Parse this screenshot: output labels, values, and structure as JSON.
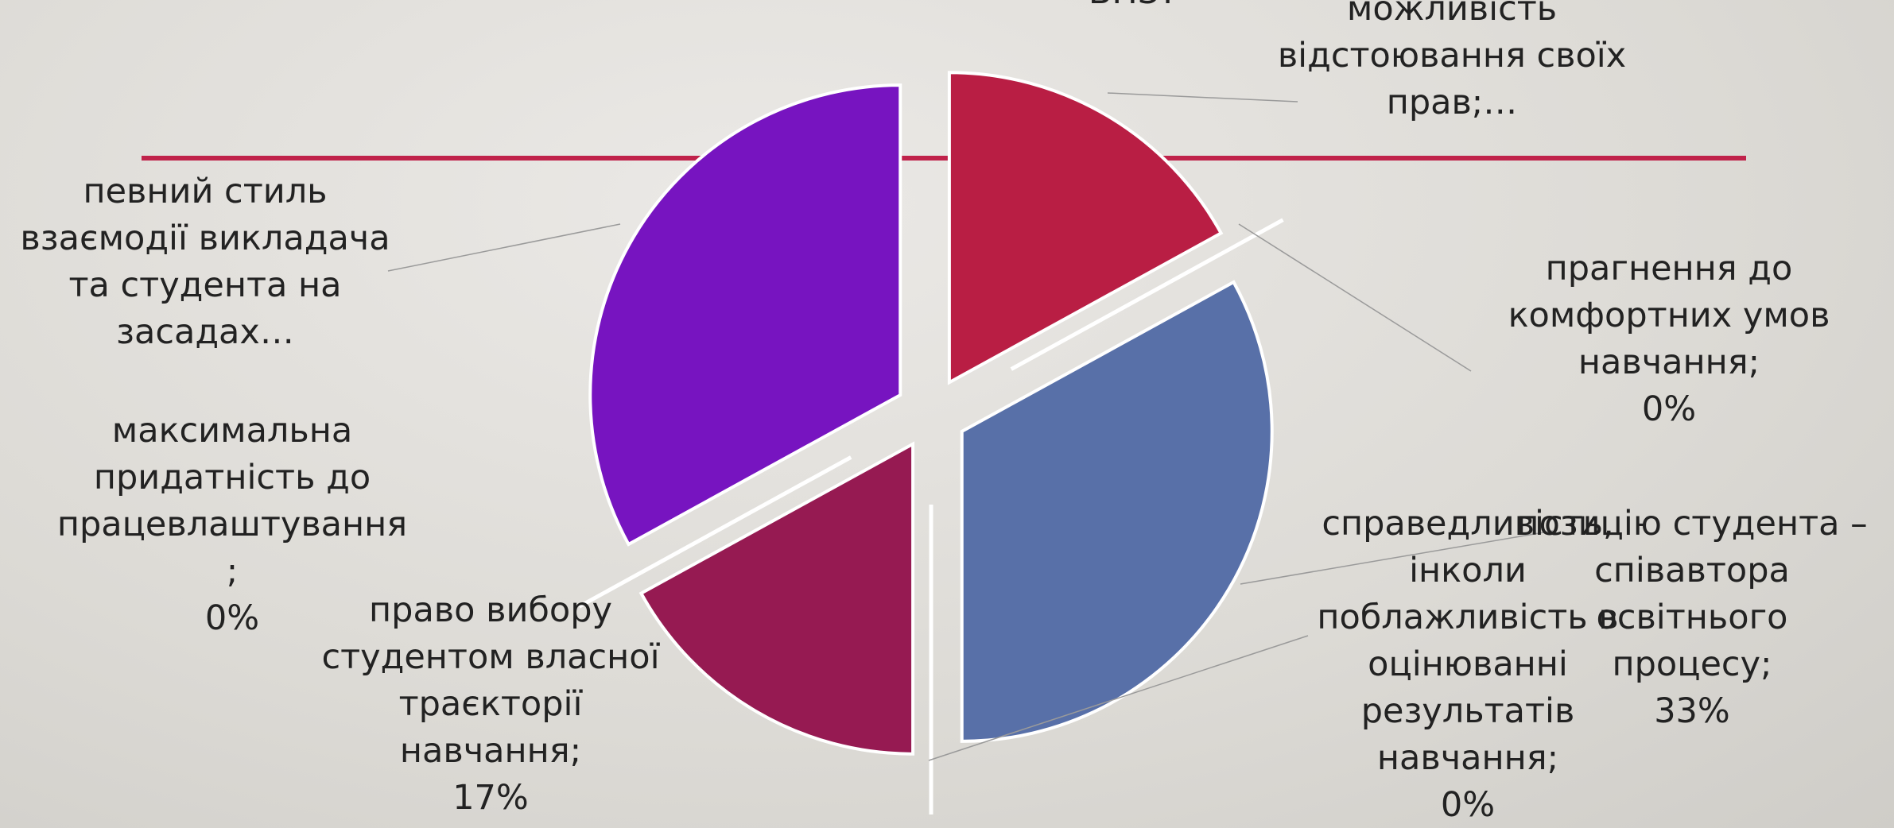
{
  "colors": {
    "background": "#e3e1dd",
    "rule_line": "#c0224a",
    "leader": "#9a9a9a"
  },
  "chart_data": {
    "type": "pie",
    "title": "",
    "slices": [
      {
        "label": "можливість відстоювання своїх прав;…",
        "value": 17,
        "color": "#b91e44",
        "label_lines": [
          "можливість",
          "відстоювання своїх",
          "прав;…"
        ]
      },
      {
        "label": "прагнення до комфортних умов навчання;",
        "value": 0,
        "color": "#b91e44",
        "label_lines": [
          "прагнення до",
          "комфортних умов",
          "навчання;",
          "0%"
        ]
      },
      {
        "label": "позицію студента – співавтора освітнього процесу;",
        "value": 33,
        "color": "#5870a8",
        "label_lines": [
          "позицію студента –",
          "співавтора",
          "освітнього",
          "процесу;",
          "33%"
        ]
      },
      {
        "label": "справедливість, інколи поблажливість в оцінюванні результатів навчання;",
        "value": 0,
        "color": "#5870a8",
        "label_lines": [
          "справедливість,",
          "інколи",
          "поблажливість в",
          "оцінюванні",
          "результатів",
          "навчання;",
          "0%"
        ]
      },
      {
        "label": "право вибору студентом власної траєкторії навчання;",
        "value": 17,
        "color": "#961a52",
        "label_lines": [
          "право вибору",
          "студентом власної",
          "траєкторії",
          "навчання;",
          "17%"
        ]
      },
      {
        "label": "максимальна придатність до працевлаштування;",
        "value": 0,
        "color": "#961a52",
        "label_lines": [
          "максимальна",
          "придатність до",
          "працевлаштування",
          ";",
          "0%"
        ]
      },
      {
        "label": "певний стиль взаємодії викладача та студента на засадах…",
        "value": 33,
        "color": "#7714c0",
        "label_lines": [
          "певний стиль",
          "взаємодії викладача",
          "та студента на",
          "засадах…"
        ]
      }
    ]
  }
}
